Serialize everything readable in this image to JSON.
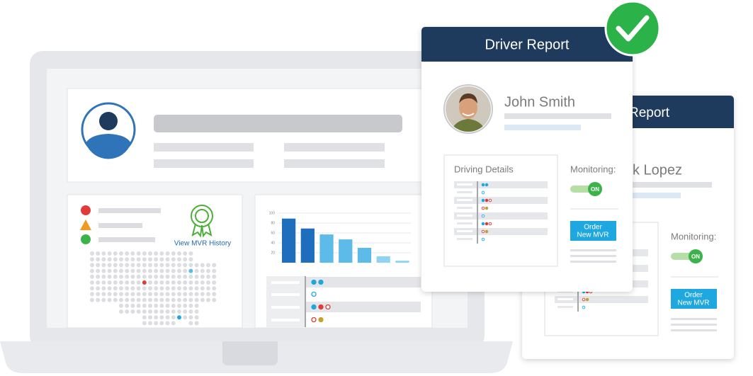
{
  "laptop": {
    "link": "View MVR History",
    "chart": {
      "ylim": [
        0,
        100
      ],
      "yticks": [
        20,
        40,
        60,
        80,
        100
      ],
      "values": [
        89,
        69,
        57,
        47,
        30,
        13,
        4
      ],
      "colors": [
        "#1f6dbd",
        "#1f6dbd",
        "#5cbbe9",
        "#5cbbe9",
        "#5cbbe9",
        "#8fd3f3",
        "#8fd3f3"
      ]
    }
  },
  "front_card": {
    "title": "Driver Report",
    "name": "John Smith",
    "details_title": "Driving Details",
    "monitoring": "Monitoring:",
    "toggle": "ON",
    "button": [
      "Order",
      "New MVR"
    ]
  },
  "back_card": {
    "title": "Report",
    "name": "k Lopez",
    "monitoring": "Monitoring:",
    "toggle": "ON",
    "button": [
      "Order",
      "New MVR"
    ]
  }
}
